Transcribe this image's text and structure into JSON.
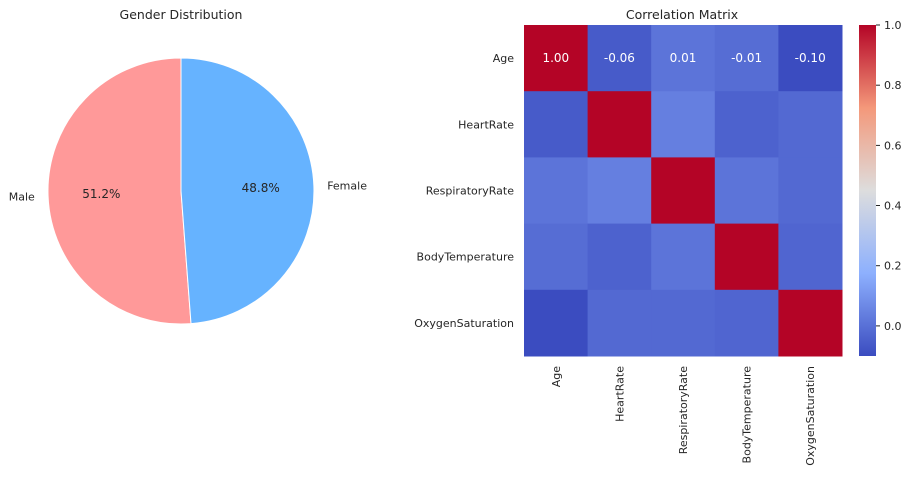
{
  "chart_data": [
    {
      "type": "pie",
      "title": "Gender Distribution",
      "categories": [
        "Male",
        "Female"
      ],
      "values": [
        51.2,
        48.8
      ],
      "value_labels": [
        "51.2%",
        "48.8%"
      ],
      "colors": [
        "#ff9999",
        "#66b3ff"
      ]
    },
    {
      "type": "heatmap",
      "title": "Correlation Matrix",
      "rows": [
        "Age",
        "HeartRate",
        "RespiratoryRate",
        "BodyTemperature",
        "OxygenSaturation"
      ],
      "columns": [
        "Age",
        "HeartRate",
        "RespiratoryRate",
        "BodyTemperature",
        "OxygenSaturation"
      ],
      "values": [
        [
          1.0,
          -0.06,
          0.01,
          -0.01,
          -0.1
        ],
        [
          -0.06,
          1.0,
          0.04,
          -0.04,
          -0.02
        ],
        [
          0.01,
          0.04,
          1.0,
          0.01,
          -0.02
        ],
        [
          -0.01,
          -0.04,
          0.01,
          1.0,
          -0.03
        ],
        [
          -0.1,
          -0.02,
          -0.02,
          -0.03,
          1.0
        ]
      ],
      "annotated_row": 0,
      "annotations": [
        "1.00",
        "-0.06",
        "0.01",
        "-0.01",
        "-0.10"
      ],
      "colormap": "coolwarm",
      "colorbar": {
        "vmin": -0.1,
        "vmax": 1.0,
        "ticks": [
          0.0,
          0.2,
          0.4,
          0.6,
          0.8,
          1.0
        ],
        "tick_labels": [
          "0.0",
          "0.2",
          "0.4",
          "0.6",
          "0.8",
          "1.0"
        ]
      }
    }
  ]
}
